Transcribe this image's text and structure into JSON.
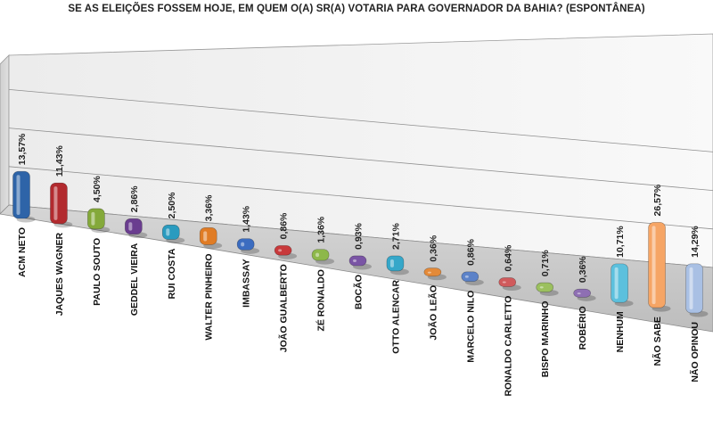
{
  "chart_data": {
    "type": "bar",
    "title": "SE AS ELEIÇÕES FOSSEM HOJE, EM QUEM O(A) SR(A) VOTARIA PARA GOVERNADOR DA BAHIA? (ESPONTÂNEA)",
    "xlabel": "",
    "ylabel": "",
    "ylim": [
      0,
      30
    ],
    "grid": true,
    "legend": "none",
    "categories": [
      "ACM NETO",
      "JAQUES WAGNER",
      "PAULO SOUTO",
      "GEDDEL VIEIRA",
      "RUI COSTA",
      "WALTER PINHEIRO",
      "IMBASSAY",
      "JOÃO GUALBERTO",
      "ZÉ RONALDO",
      "BOCÃO",
      "OTTO ALENCAR",
      "JOÃO LEÃO",
      "MARCELO NILO",
      "RONALDO CARLETTO",
      "BISPO MARINHO",
      "ROBÉRIO",
      "NENHUM",
      "NÃO SABE",
      "NÃO OPINOU"
    ],
    "values": [
      13.57,
      11.43,
      4.5,
      2.86,
      2.5,
      3.36,
      1.43,
      0.86,
      1.36,
      0.93,
      2.71,
      0.36,
      0.86,
      0.64,
      0.71,
      0.36,
      10.71,
      26.57,
      14.29
    ],
    "value_labels": [
      "13,57%",
      "11,43%",
      "4,50%",
      "2,86%",
      "2,50%",
      "3,36%",
      "1,43%",
      "0,86%",
      "1,36%",
      "0,93%",
      "2,71%",
      "0,36%",
      "0,86%",
      "0,64%",
      "0,71%",
      "0,36%",
      "10,71%",
      "26,57%",
      "14,29%"
    ],
    "colors": [
      "#2E64A8",
      "#B22A2E",
      "#84A93A",
      "#6A3D8F",
      "#2A9BBF",
      "#E07C25",
      "#3B6CC0",
      "#C8393B",
      "#8DB84A",
      "#7A55A5",
      "#35A7C9",
      "#E48A38",
      "#5C82C8",
      "#D05A5C",
      "#9BC05E",
      "#8E6FB3",
      "#5CC0DD",
      "#F6A565",
      "#A9C0E4"
    ]
  }
}
